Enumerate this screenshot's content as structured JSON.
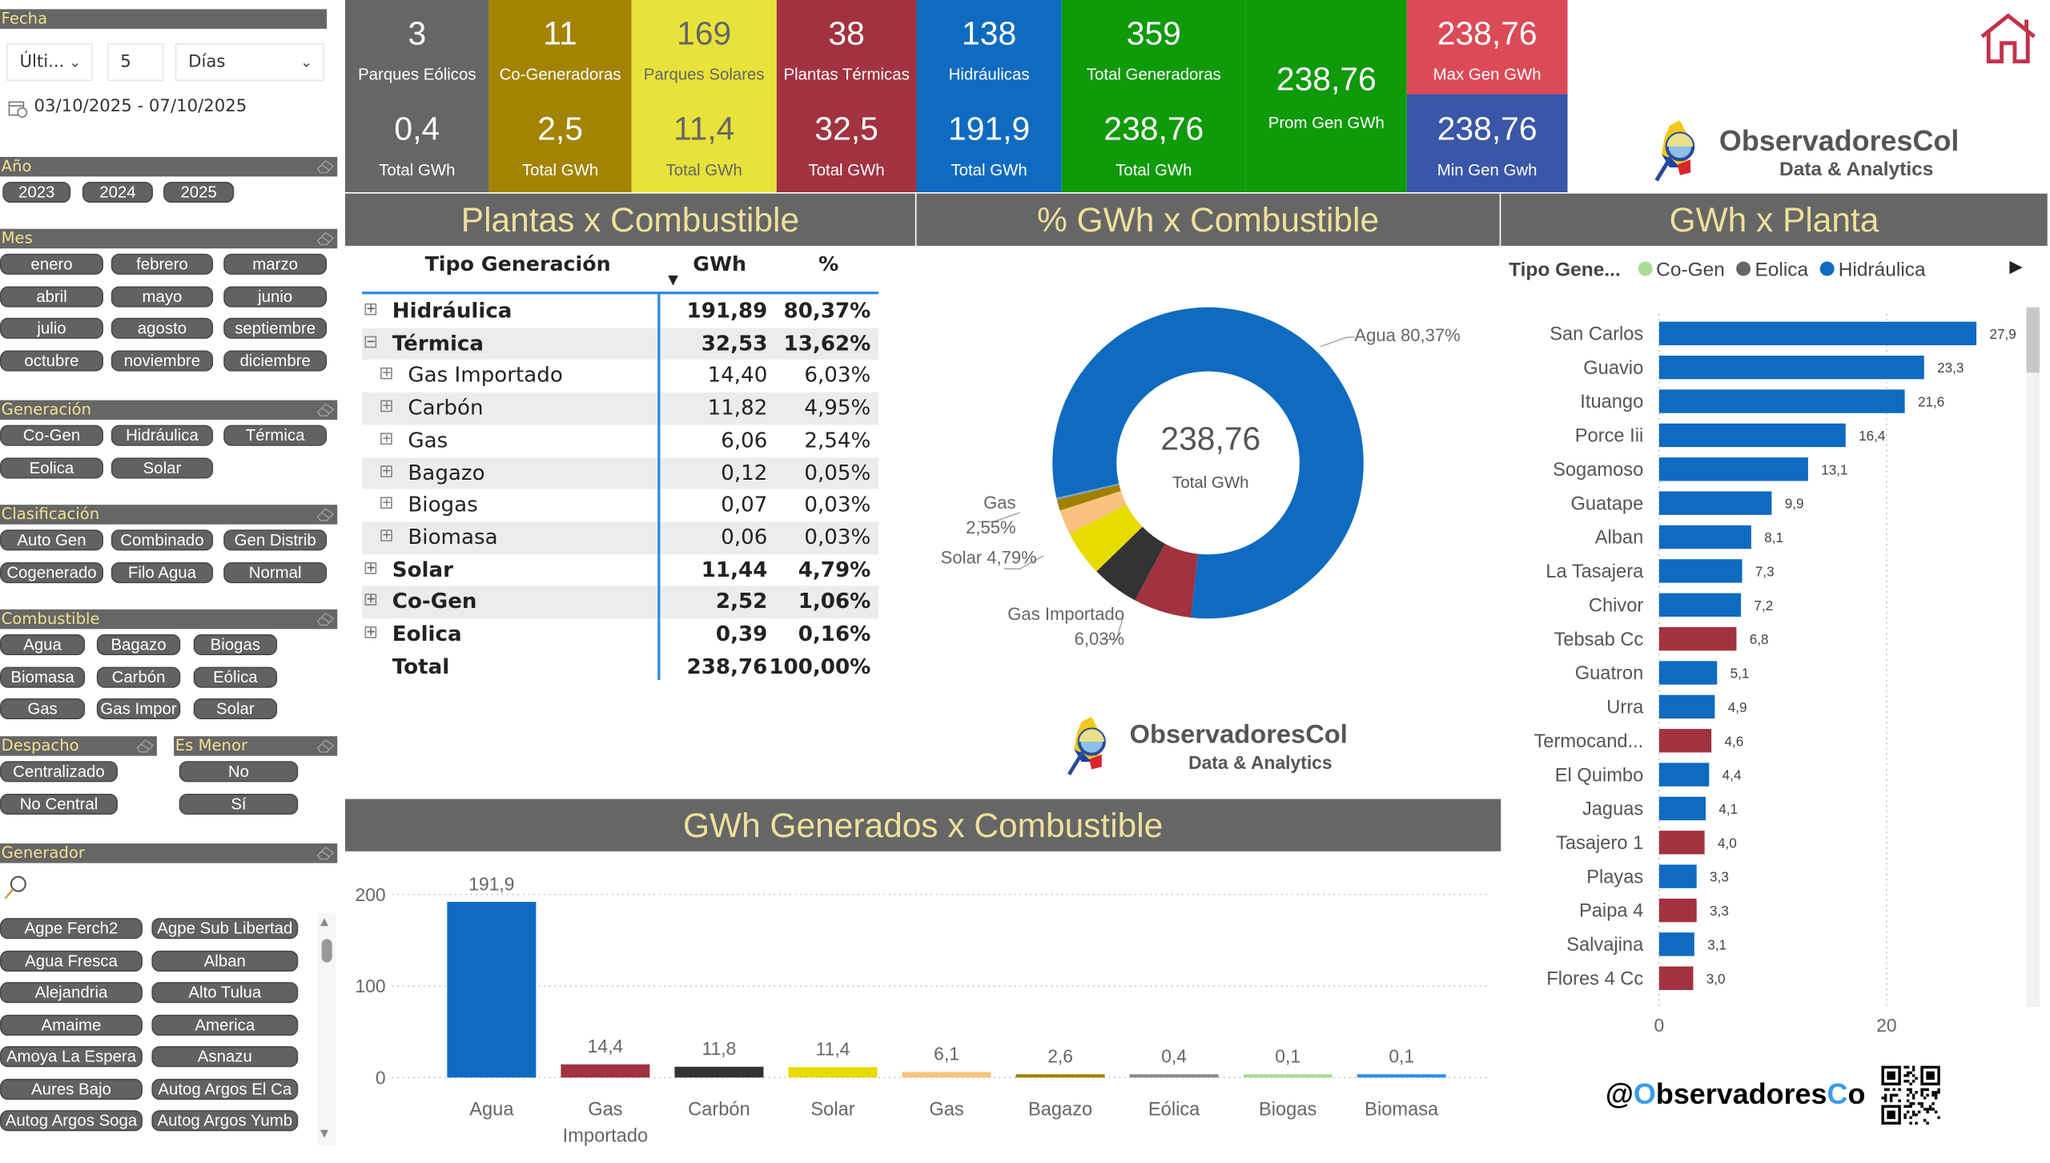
{
  "filters": {
    "fecha": {
      "header": "Fecha",
      "mode": "Últi...",
      "count": "5",
      "unit": "Días",
      "range": "03/10/2025 - 07/10/2025"
    },
    "anio": {
      "header": "Año",
      "items": [
        "2023",
        "2024",
        "2025"
      ]
    },
    "mes": {
      "header": "Mes",
      "items": [
        "enero",
        "febrero",
        "marzo",
        "abril",
        "mayo",
        "junio",
        "julio",
        "agosto",
        "septiembre",
        "octubre",
        "noviembre",
        "diciembre"
      ]
    },
    "generacion": {
      "header": "Generación",
      "items": [
        "Co-Gen",
        "Hidráulica",
        "Térmica",
        "Eolica",
        "Solar"
      ]
    },
    "clasificacion": {
      "header": "Clasificación",
      "items": [
        "Auto Gen",
        "Combinado",
        "Gen Distrib",
        "Cogenerado",
        "Filo Agua",
        "Normal"
      ]
    },
    "combustible": {
      "header": "Combustible",
      "items": [
        "Agua",
        "Bagazo",
        "Biogas",
        "Biomasa",
        "Carbón",
        "Eólica",
        "Gas",
        "Gas Impor",
        "Solar"
      ]
    },
    "despacho": {
      "header": "Despacho",
      "items": [
        "Centralizado",
        "No Central"
      ]
    },
    "es_menor": {
      "header": "Es Menor",
      "items": [
        "No",
        "Sí"
      ]
    },
    "generador": {
      "header": "Generador",
      "items": [
        "Agpe Ferch2",
        "Agpe Sub Libertad",
        "Agua Fresca",
        "Alban",
        "Alejandria",
        "Alto Tulua",
        "Amaime",
        "America",
        "Amoya La Espera",
        "Asnazu",
        "Aures Bajo",
        "Autog Argos El Ca",
        "Autog Argos Soga",
        "Autog Argos Yumb"
      ]
    }
  },
  "kpis": [
    {
      "value": "3",
      "label": "Parques Eólicos",
      "value2": "0,4",
      "label2": "Total GWh",
      "color": "#666666"
    },
    {
      "value": "11",
      "label": "Co-Generadoras",
      "value2": "2,5",
      "label2": "Total GWh",
      "color": "#a38300"
    },
    {
      "value": "169",
      "label": "Parques Solares",
      "value2": "11,4",
      "label2": "Total GWh",
      "color": "#e7e33a"
    },
    {
      "value": "38",
      "label": "Plantas Térmicas",
      "value2": "32,5",
      "label2": "Total GWh",
      "color": "#a2323f"
    },
    {
      "value": "138",
      "label": "Hidráulicas",
      "value2": "191,9",
      "label2": "Total GWh",
      "color": "#0f6bc1"
    },
    {
      "value": "359",
      "label": "Total Generadoras",
      "value2": "238,76",
      "label2": "Total GWh",
      "color": "#0f9a0a"
    }
  ],
  "prom": {
    "value": "238,76",
    "label": "Prom Gen GWh",
    "color": "#0f9a0a"
  },
  "max": {
    "value": "238,76",
    "label": "Max Gen GWh",
    "color": "#dc4a57"
  },
  "min": {
    "value": "238,76",
    "label": "Min Gen Gwh",
    "color": "#3a56a8"
  },
  "brand": {
    "name": "ObservadoresCol",
    "tagline": "Data & Analytics",
    "handle_at": "@",
    "handle_o": "O",
    "handle_mid": "bservadores",
    "handle_c": "C",
    "handle_end": "o"
  },
  "sections": {
    "table": "Plantas x Combustible",
    "donut": "% GWh x Combustible",
    "plants": "GWh x Planta",
    "bars": "GWh Generados x Combustible"
  },
  "table": {
    "headers": [
      "Tipo Generación",
      "GWh",
      "%"
    ],
    "rows": [
      {
        "label": "Hidráulica",
        "gwh": "191,89",
        "pct": "80,37%",
        "level": 0,
        "expanded": false
      },
      {
        "label": "Térmica",
        "gwh": "32,53",
        "pct": "13,62%",
        "level": 0,
        "expanded": true
      },
      {
        "label": "Gas Importado",
        "gwh": "14,40",
        "pct": "6,03%",
        "level": 1,
        "expanded": false
      },
      {
        "label": "Carbón",
        "gwh": "11,82",
        "pct": "4,95%",
        "level": 1,
        "expanded": false
      },
      {
        "label": "Gas",
        "gwh": "6,06",
        "pct": "2,54%",
        "level": 1,
        "expanded": false
      },
      {
        "label": "Bagazo",
        "gwh": "0,12",
        "pct": "0,05%",
        "level": 1,
        "expanded": false
      },
      {
        "label": "Biogas",
        "gwh": "0,07",
        "pct": "0,03%",
        "level": 1,
        "expanded": false
      },
      {
        "label": "Biomasa",
        "gwh": "0,06",
        "pct": "0,03%",
        "level": 1,
        "expanded": false
      },
      {
        "label": "Solar",
        "gwh": "11,44",
        "pct": "4,79%",
        "level": 0,
        "expanded": false
      },
      {
        "label": "Co-Gen",
        "gwh": "2,52",
        "pct": "1,06%",
        "level": 0,
        "expanded": false
      },
      {
        "label": "Eolica",
        "gwh": "0,39",
        "pct": "0,16%",
        "level": 0,
        "expanded": false
      }
    ],
    "total": {
      "label": "Total",
      "gwh": "238,76",
      "pct": "100,00%"
    }
  },
  "chart_data": [
    {
      "type": "pie",
      "title": "% GWh x Combustible",
      "center_value": "238,76",
      "center_label": "Total GWh",
      "categories": [
        "Agua",
        "Gas Importado",
        "Carbón",
        "Solar",
        "Gas",
        "Bagazo",
        "Eólica",
        "Biogas",
        "Biomasa"
      ],
      "values": [
        191.9,
        14.4,
        11.8,
        11.4,
        6.1,
        2.6,
        0.4,
        0.1,
        0.1
      ],
      "colors": [
        "#0f6bc1",
        "#a2323f",
        "#333333",
        "#e6dc00",
        "#f8c27e",
        "#a08000",
        "#8a8a8a",
        "#a8dc98",
        "#2f8cf0"
      ],
      "labels": [
        {
          "line1": "Agua 80,37%"
        },
        {
          "line1": "Gas",
          "line2": "2,55%"
        },
        {
          "line1": "Solar 4,79%"
        },
        {
          "line1": "Gas Importado",
          "line2": "6,03%"
        }
      ]
    },
    {
      "type": "bar",
      "title": "GWh Generados x Combustible",
      "categories": [
        "Agua",
        "Gas Importado",
        "Carbón",
        "Solar",
        "Gas",
        "Bagazo",
        "Eólica",
        "Biogas",
        "Biomasa"
      ],
      "values": [
        191.9,
        14.4,
        11.8,
        11.4,
        6.1,
        2.6,
        0.4,
        0.1,
        0.1
      ],
      "data_labels": [
        "191,9",
        "14,4",
        "11,8",
        "11,4",
        "6,1",
        "2,6",
        "0,4",
        "0,1",
        "0,1"
      ],
      "colors": [
        "#0f6bc1",
        "#a2323f",
        "#333333",
        "#e6dc00",
        "#f8c27e",
        "#a08000",
        "#8a8a8a",
        "#a8dc98",
        "#2f8cf0"
      ],
      "yticks": [
        "0",
        "100",
        "200"
      ],
      "ylim": [
        0,
        200
      ],
      "grid": true
    },
    {
      "type": "bar",
      "orientation": "horizontal",
      "title": "GWh x Planta",
      "legend": {
        "title": "Tipo Gene...",
        "items": [
          {
            "name": "Co-Gen",
            "color": "#a8dc98"
          },
          {
            "name": "Eolica",
            "color": "#666666"
          },
          {
            "name": "Hidráulica",
            "color": "#0f6bc1"
          }
        ],
        "position": "top"
      },
      "categories": [
        "San Carlos",
        "Guavio",
        "Ituango",
        "Porce Iii",
        "Sogamoso",
        "Guatape",
        "Alban",
        "La Tasajera",
        "Chivor",
        "Tebsab Cc",
        "Guatron",
        "Urra",
        "Termocand...",
        "El Quimbo",
        "Jaguas",
        "Tasajero 1",
        "Playas",
        "Paipa 4",
        "Salvajina",
        "Flores 4 Cc"
      ],
      "values": [
        27.9,
        23.3,
        21.6,
        16.4,
        13.1,
        9.9,
        8.1,
        7.3,
        7.2,
        6.8,
        5.1,
        4.9,
        4.6,
        4.4,
        4.1,
        4.0,
        3.3,
        3.3,
        3.1,
        3.0
      ],
      "data_labels": [
        "27,9",
        "23,3",
        "21,6",
        "16,4",
        "13,1",
        "9,9",
        "8,1",
        "7,3",
        "7,2",
        "6,8",
        "5,1",
        "4,9",
        "4,6",
        "4,4",
        "4,1",
        "4,0",
        "3,3",
        "3,3",
        "3,1",
        "3,0"
      ],
      "types": [
        "H",
        "H",
        "H",
        "H",
        "H",
        "H",
        "H",
        "H",
        "H",
        "T",
        "H",
        "H",
        "T",
        "H",
        "H",
        "T",
        "H",
        "T",
        "H",
        "T"
      ],
      "type_colors": {
        "H": "#0f6bc1",
        "T": "#a2323f"
      },
      "xticks": [
        "0",
        "20"
      ],
      "grid": true
    }
  ]
}
